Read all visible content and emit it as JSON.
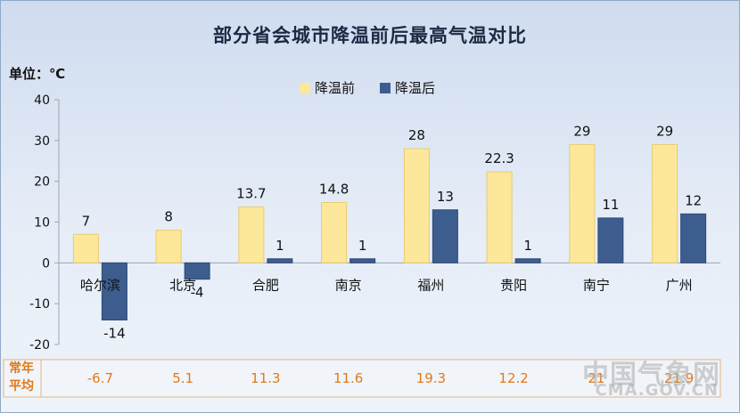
{
  "chart_data": {
    "type": "bar",
    "title": "部分省会城市降温前后最高气温对比",
    "unit_label": "单位：℃",
    "categories": [
      "哈尔滨",
      "北京",
      "合肥",
      "南京",
      "福州",
      "贵阳",
      "南宁",
      "广州"
    ],
    "series": [
      {
        "name": "降温前",
        "color": "#fde79a",
        "border": "#e8cc6e",
        "values": [
          7,
          8,
          13.7,
          14.8,
          28,
          22.3,
          29,
          29
        ]
      },
      {
        "name": "降温后",
        "color": "#3d5d8e",
        "border": "#2f4a74",
        "values": [
          -14,
          -4,
          1,
          1,
          13,
          1,
          11,
          12
        ]
      }
    ],
    "ylim": [
      -20,
      40
    ],
    "yticks": [
      -20,
      -10,
      0,
      10,
      20,
      30,
      40
    ],
    "ytick_labels": [
      "-20",
      "-10",
      "0",
      "10",
      "20",
      "30",
      "40"
    ],
    "value_labels": {
      "before": [
        "7",
        "8",
        "13.7",
        "14.8",
        "28",
        "22.3",
        "29",
        "29"
      ],
      "after": [
        "-14",
        "-4",
        "1",
        "1",
        "13",
        "1",
        "11",
        "12"
      ]
    },
    "legend_position": "top-center",
    "grid": false,
    "normal_row": {
      "label": "常年平均",
      "label_lines": [
        "常年",
        "平均"
      ],
      "values": [
        "-6.7",
        "5.1",
        "11.3",
        "11.6",
        "19.3",
        "12.2",
        "21",
        "21.9"
      ],
      "color": "#e07a18"
    }
  },
  "watermark": {
    "cn": "中国气象网",
    "en": "CMA.GOV.CN"
  }
}
